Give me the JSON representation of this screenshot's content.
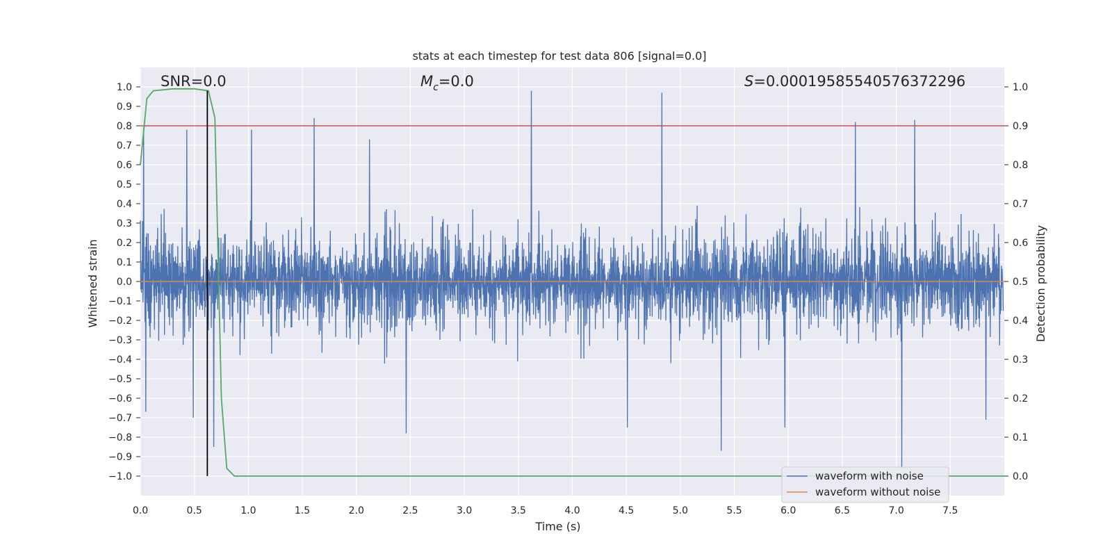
{
  "chart_data": {
    "type": "line",
    "title": "stats at each timestep for test data 806 [signal=0.0]",
    "xlabel": "Time (s)",
    "ylabel_left": "Whitened strain",
    "ylabel_right": "Detection probability",
    "xlim": [
      0.0,
      8.0
    ],
    "ylim_left": [
      -1.1,
      1.1
    ],
    "ylim_right": [
      -0.05,
      1.05
    ],
    "x_ticks": [
      "0.0",
      "0.5",
      "1.0",
      "1.5",
      "2.0",
      "2.5",
      "3.0",
      "3.5",
      "4.0",
      "4.5",
      "5.0",
      "5.5",
      "6.0",
      "6.5",
      "7.0",
      "7.5"
    ],
    "y_left_ticks": [
      "1.0",
      "0.9",
      "0.8",
      "0.7",
      "0.6",
      "0.5",
      "0.4",
      "0.3",
      "0.2",
      "0.1",
      "0.0",
      "−0.1",
      "−0.2",
      "−0.3",
      "−0.4",
      "−0.5",
      "−0.6",
      "−0.7",
      "−0.8",
      "−0.9",
      "−1.0"
    ],
    "y_right_ticks": [
      "1.0",
      "0.9",
      "0.8",
      "0.7",
      "0.6",
      "0.5",
      "0.4",
      "0.3",
      "0.2",
      "0.1",
      "0.0"
    ],
    "grid": true,
    "legend_position": "bottom-right",
    "annotations": {
      "snr": "SNR=0.0",
      "mc_symbol": "M",
      "mc_sub": "c",
      "mc_value": "=0.0",
      "s_symbol": "S",
      "s_value": "=0.00019585540576372296"
    },
    "series": [
      {
        "name": "waveform with noise",
        "axis": "left",
        "color": "#4c72b0",
        "style": "noise",
        "amplitude_typical": 0.4,
        "peaks": [
          {
            "x": 0.03,
            "y": 0.79
          },
          {
            "x": 0.05,
            "y": -0.67
          },
          {
            "x": 0.43,
            "y": 0.78
          },
          {
            "x": 0.49,
            "y": -0.7
          },
          {
            "x": 0.68,
            "y": -0.85
          },
          {
            "x": 1.03,
            "y": 0.78
          },
          {
            "x": 1.61,
            "y": 0.84
          },
          {
            "x": 2.12,
            "y": 0.73
          },
          {
            "x": 2.46,
            "y": -0.78
          },
          {
            "x": 3.62,
            "y": 0.98
          },
          {
            "x": 4.83,
            "y": 0.97
          },
          {
            "x": 4.51,
            "y": -0.75
          },
          {
            "x": 5.38,
            "y": -0.87
          },
          {
            "x": 5.97,
            "y": -0.75
          },
          {
            "x": 6.62,
            "y": 0.82
          },
          {
            "x": 7.05,
            "y": -0.96
          },
          {
            "x": 7.17,
            "y": 0.83
          },
          {
            "x": 7.83,
            "y": -0.71
          }
        ]
      },
      {
        "name": "waveform without noise",
        "axis": "left",
        "color": "#dd8452",
        "x": [
          0.0,
          8.0
        ],
        "y": [
          0.0,
          0.0
        ]
      },
      {
        "name": "",
        "axis": "right",
        "color": "#55a868",
        "x": [
          0.0,
          0.06,
          0.12,
          0.3,
          0.5,
          0.63,
          0.69,
          0.75,
          0.8,
          0.87,
          1.0,
          2.0,
          3.0,
          4.0,
          5.0,
          6.0,
          7.0,
          8.0
        ],
        "y": [
          0.8,
          0.97,
          0.99,
          0.995,
          0.995,
          0.99,
          0.92,
          0.2,
          0.02,
          0.0,
          0.0,
          0.0,
          0.0,
          0.0,
          0.0,
          0.0,
          0.0,
          0.0
        ]
      }
    ],
    "threshold_line": {
      "axis": "right",
      "y": 0.9,
      "color": "#c44e52"
    },
    "vertical_marker": {
      "x": 0.62,
      "y_from": -1.0,
      "y_to": 0.99,
      "color": "#000000"
    }
  }
}
